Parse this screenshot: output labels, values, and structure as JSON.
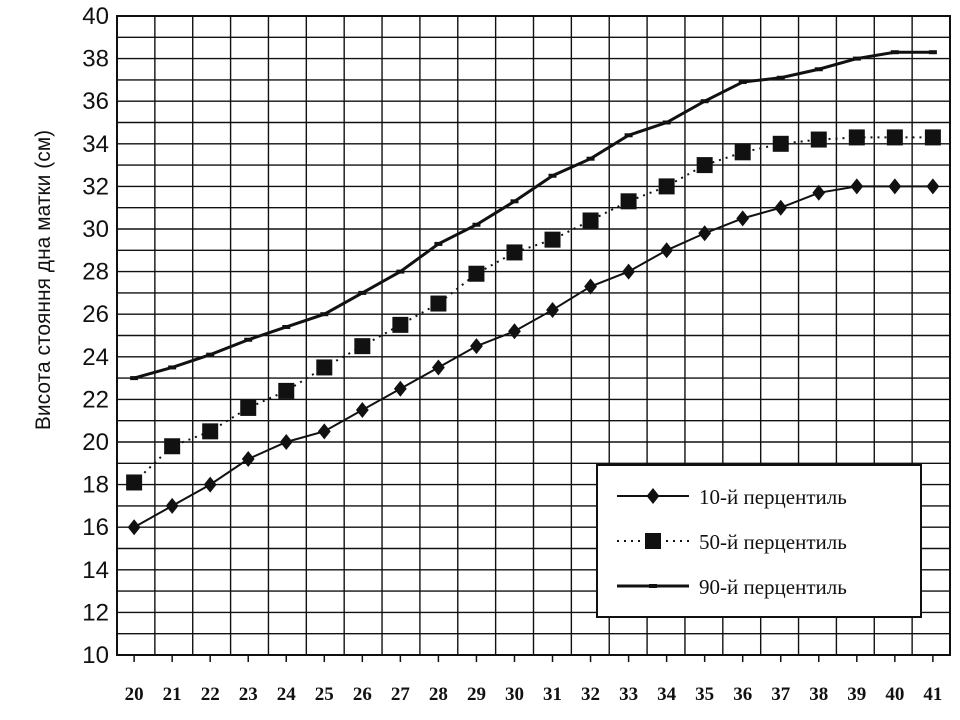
{
  "chart_data": {
    "type": "line",
    "title": "",
    "xlabel": "",
    "ylabel": "Висота стояння дна матки (см)",
    "x": [
      20,
      21,
      22,
      23,
      24,
      25,
      26,
      27,
      28,
      29,
      30,
      31,
      32,
      33,
      34,
      35,
      36,
      37,
      38,
      39,
      40,
      41
    ],
    "xlim": [
      19.55,
      41.45
    ],
    "ylim": [
      10,
      40
    ],
    "yticks": [
      10,
      12,
      14,
      16,
      18,
      20,
      22,
      24,
      26,
      28,
      30,
      32,
      34,
      36,
      38,
      40
    ],
    "grid": true,
    "legend_position": "bottom-right",
    "series": [
      {
        "name": "10-й перцентиль",
        "marker": "diamond",
        "line": "solid",
        "values": [
          16,
          17,
          18,
          19.2,
          20,
          20.5,
          21.5,
          22.5,
          23.5,
          24.5,
          25.2,
          26.2,
          27.3,
          28,
          29,
          29.8,
          30.5,
          31,
          31.7,
          32,
          32,
          32
        ]
      },
      {
        "name": "50-й перцентиль",
        "marker": "square",
        "line": "dotted",
        "values": [
          18.1,
          19.8,
          20.5,
          21.6,
          22.4,
          23.5,
          24.5,
          25.5,
          26.5,
          27.9,
          28.9,
          29.5,
          30.4,
          31.3,
          32,
          33,
          33.6,
          34,
          34.2,
          34.3,
          34.3,
          34.3
        ]
      },
      {
        "name": "90-й перцентиль",
        "marker": "small-dash",
        "line": "solid",
        "values": [
          23,
          23.5,
          24.1,
          24.8,
          25.4,
          26,
          27,
          28,
          29.3,
          30.2,
          31.3,
          32.5,
          33.3,
          34.4,
          35,
          36,
          36.9,
          37.1,
          37.5,
          38,
          38.3,
          38.3
        ]
      }
    ],
    "colors": {
      "line": "#111111",
      "grid": "#111111",
      "background": "#ffffff"
    }
  }
}
